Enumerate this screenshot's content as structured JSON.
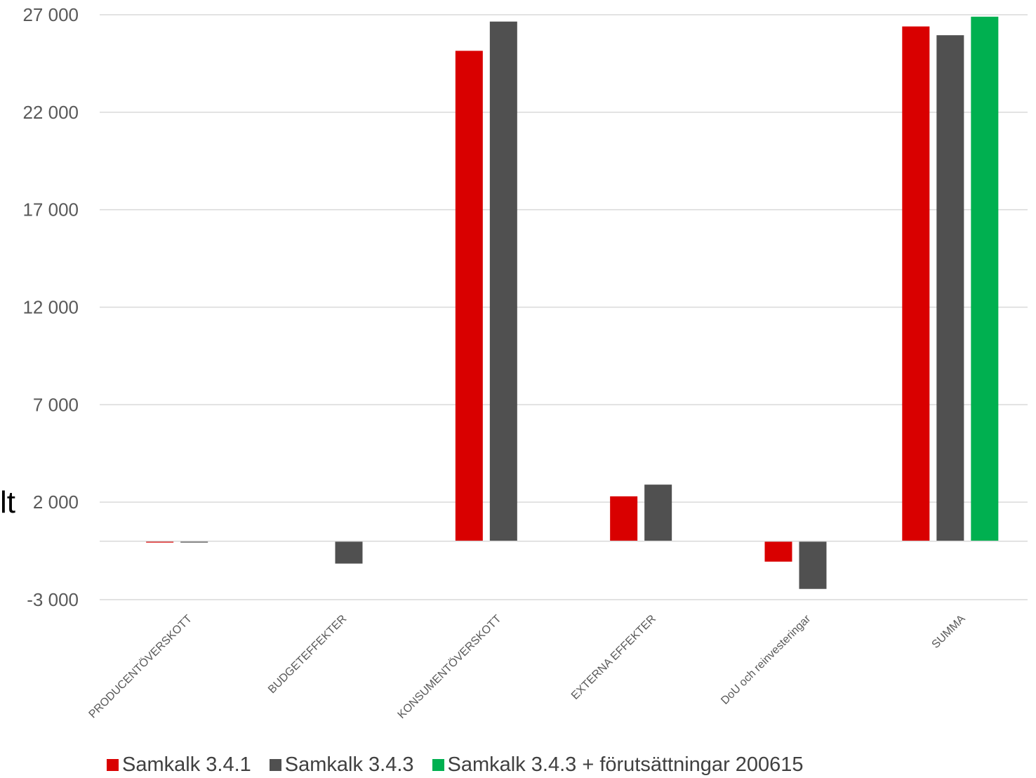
{
  "chart_data": {
    "type": "bar",
    "categories": [
      "PRODUCENTÖVERSKOTT",
      "BUDGETEFFEKTER",
      "KONSUMENTÖVERSKOTT",
      "EXTERNA EFFEKTER",
      "DoU och reinvesteringar",
      "SUMMA"
    ],
    "series": [
      {
        "name": "Samkalk 3.4.1",
        "color": "#d90000",
        "values": [
          -50,
          null,
          25150,
          2300,
          -1050,
          26400
        ]
      },
      {
        "name": "Samkalk 3.4.3",
        "color": "#505050",
        "values": [
          -50,
          -1150,
          26650,
          2900,
          -2450,
          25950
        ]
      },
      {
        "name": "Samkalk 3.4.3 + förutsättningar 200615",
        "color": "#00b050",
        "values": [
          null,
          null,
          null,
          null,
          null,
          26900
        ]
      }
    ],
    "yticks": [
      -3000,
      2000,
      7000,
      12000,
      17000,
      22000,
      27000
    ],
    "ytick_labels": [
      "-3 000",
      "2 000",
      "7 000",
      "12 000",
      "17 000",
      "22 000",
      "27 000"
    ],
    "ylim": [
      -3000,
      27000
    ],
    "grid": true,
    "legend_position": "bottom"
  },
  "cropped_text": "lt"
}
